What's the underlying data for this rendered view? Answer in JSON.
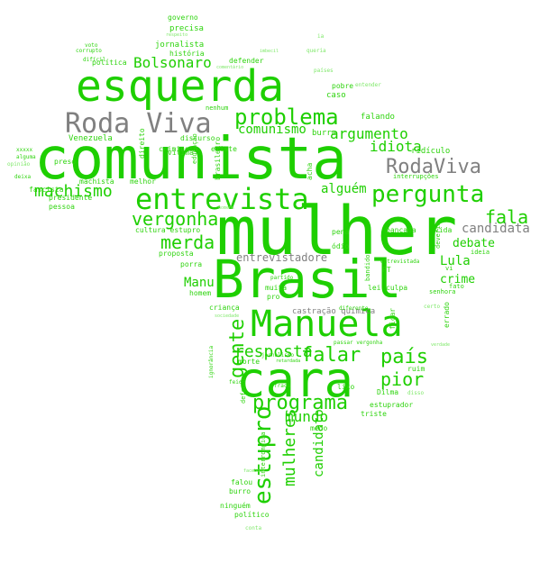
{
  "colors": {
    "primary": "#1ecf00",
    "secondary": "#2fd40f",
    "light": "#7fe86a",
    "gray": "#808080",
    "background": "#ffffff"
  },
  "words": [
    {
      "text": "mulher",
      "color": "primary"
    },
    {
      "text": "comunista",
      "color": "primary"
    },
    {
      "text": "Brasil",
      "color": "primary"
    },
    {
      "text": "esquerda",
      "color": "primary"
    },
    {
      "text": "cara",
      "color": "primary"
    },
    {
      "text": "Manuela",
      "color": "primary"
    },
    {
      "text": "Roda Viva",
      "color": "gray"
    },
    {
      "text": "entrevista",
      "color": "primary"
    },
    {
      "text": "pergunta",
      "color": "primary"
    },
    {
      "text": "problema",
      "color": "primary"
    },
    {
      "text": "programa",
      "color": "primary"
    },
    {
      "text": "estupro",
      "color": "primary"
    },
    {
      "text": "RodaViva",
      "color": "gray"
    },
    {
      "text": "vergonha",
      "color": "primary"
    },
    {
      "text": "falar",
      "color": "primary"
    },
    {
      "text": "país",
      "color": "primary"
    },
    {
      "text": "gente",
      "color": "primary"
    },
    {
      "text": "merda",
      "color": "primary"
    },
    {
      "text": "machismo",
      "color": "primary"
    },
    {
      "text": "mulheres",
      "color": "primary"
    },
    {
      "text": "fala",
      "color": "primary"
    },
    {
      "text": "pior",
      "color": "primary"
    },
    {
      "text": "resposta",
      "color": "primary"
    },
    {
      "text": "argumento",
      "color": "primary"
    },
    {
      "text": "Bolsonaro",
      "color": "primary"
    },
    {
      "text": "comunismo",
      "color": "primary"
    },
    {
      "text": "idiota",
      "color": "primary"
    },
    {
      "text": "mundo",
      "color": "primary"
    },
    {
      "text": "candidata",
      "color": "gray"
    },
    {
      "text": "candidato",
      "color": "primary"
    },
    {
      "text": "debate",
      "color": "primary"
    },
    {
      "text": "Lula",
      "color": "primary"
    },
    {
      "text": "crime",
      "color": "primary"
    },
    {
      "text": "alguém",
      "color": "primary"
    },
    {
      "text": "entrevistadore",
      "color": "gray"
    },
    {
      "text": "Manu",
      "color": "primary"
    },
    {
      "text": "jornalista",
      "color": "secondary"
    },
    {
      "text": "precisa",
      "color": "secondary"
    },
    {
      "text": "governo",
      "color": "secondary"
    },
    {
      "text": "história",
      "color": "secondary"
    },
    {
      "text": "política",
      "color": "secondary"
    },
    {
      "text": "Venezuela",
      "color": "secondary"
    },
    {
      "text": "fascista",
      "color": "secondary"
    },
    {
      "text": "presidente",
      "color": "secondary"
    },
    {
      "text": "pessoa",
      "color": "secondary"
    },
    {
      "text": "machista",
      "color": "secondary"
    },
    {
      "text": "caso",
      "color": "secondary"
    },
    {
      "text": "falando",
      "color": "secondary"
    },
    {
      "text": "burra",
      "color": "secondary"
    },
    {
      "text": "ridículo",
      "color": "secondary"
    },
    {
      "text": "entender",
      "color": "light"
    },
    {
      "text": "pobre",
      "color": "secondary"
    },
    {
      "text": "países",
      "color": "light"
    },
    {
      "text": "defender",
      "color": "secondary"
    },
    {
      "text": "discurso",
      "color": "secondary"
    },
    {
      "text": "vítima",
      "color": "secondary"
    },
    {
      "text": "melhor",
      "color": "secondary"
    },
    {
      "text": "brasileiro",
      "color": "secondary"
    },
    {
      "text": "existe",
      "color": "secondary"
    },
    {
      "text": "criminoso",
      "color": "secondary"
    },
    {
      "text": "preso",
      "color": "secondary"
    },
    {
      "text": "bancada",
      "color": "secondary"
    },
    {
      "text": "vida",
      "color": "secondary"
    },
    {
      "text": "cultura estupro",
      "color": "secondary"
    },
    {
      "text": "proposta",
      "color": "secondary"
    },
    {
      "text": "porra",
      "color": "secondary"
    },
    {
      "text": "homem",
      "color": "secondary"
    },
    {
      "text": "pena",
      "color": "secondary"
    },
    {
      "text": "ódio",
      "color": "secondary"
    },
    {
      "text": "ideia",
      "color": "secondary"
    },
    {
      "text": "lei",
      "color": "secondary"
    },
    {
      "text": "culpa",
      "color": "secondary"
    },
    {
      "text": "senhora",
      "color": "secondary"
    },
    {
      "text": "PT",
      "color": "secondary"
    },
    {
      "text": "fato",
      "color": "secondary"
    },
    {
      "text": "errado",
      "color": "secondary"
    },
    {
      "text": "ficar",
      "color": "secondary"
    },
    {
      "text": "muita",
      "color": "secondary"
    },
    {
      "text": "pro",
      "color": "secondary"
    },
    {
      "text": "criança",
      "color": "secondary"
    },
    {
      "text": "castração química",
      "color": "gray"
    },
    {
      "text": "morte",
      "color": "secondary"
    },
    {
      "text": "ruim",
      "color": "secondary"
    },
    {
      "text": "Dilma",
      "color": "secondary"
    },
    {
      "text": "estuprador",
      "color": "secondary"
    },
    {
      "text": "triste",
      "color": "secondary"
    },
    {
      "text": "medo",
      "color": "secondary"
    },
    {
      "text": "lixo",
      "color": "secondary"
    },
    {
      "text": "falou",
      "color": "secondary"
    },
    {
      "text": "burro",
      "color": "secondary"
    },
    {
      "text": "ninguém",
      "color": "secondary"
    },
    {
      "text": "político",
      "color": "secondary"
    },
    {
      "text": "conta",
      "color": "light"
    },
    {
      "text": "interrupções",
      "color": "secondary"
    },
    {
      "text": "entrevistada",
      "color": "secondary"
    },
    {
      "text": "passar vergonha",
      "color": "secondary"
    },
    {
      "text": "defende",
      "color": "secondary"
    },
    {
      "text": "interrompida",
      "color": "secondary"
    },
    {
      "text": "educação",
      "color": "secondary"
    },
    {
      "text": "direito",
      "color": "secondary"
    },
    {
      "text": "feio",
      "color": "secondary"
    },
    {
      "text": "fraca",
      "color": "secondary"
    },
    {
      "text": "jornalismo",
      "color": "secondary"
    },
    {
      "text": "bandido",
      "color": "secondary"
    },
    {
      "text": "deveria",
      "color": "secondary"
    },
    {
      "text": "partido",
      "color": "secondary"
    },
    {
      "text": "diferente",
      "color": "secondary"
    },
    {
      "text": "ignorância",
      "color": "secondary"
    },
    {
      "text": "retardada",
      "color": "secondary"
    },
    {
      "text": "voto",
      "color": "secondary"
    },
    {
      "text": "corrupto",
      "color": "secondary"
    },
    {
      "text": "difícil",
      "color": "secondary"
    },
    {
      "text": "imbecil",
      "color": "light"
    },
    {
      "text": "ia",
      "color": "light"
    },
    {
      "text": "respeito",
      "color": "light"
    },
    {
      "text": "queria",
      "color": "light"
    },
    {
      "text": "comentário",
      "color": "light"
    },
    {
      "text": "nenhum",
      "color": "secondary"
    },
    {
      "text": "xxxxx",
      "color": "secondary"
    },
    {
      "text": "alguma",
      "color": "secondary"
    },
    {
      "text": "opinião",
      "color": "light"
    },
    {
      "text": "deixa",
      "color": "secondary"
    },
    {
      "text": "acha",
      "color": "secondary"
    },
    {
      "text": "certo",
      "color": "light"
    },
    {
      "text": "disso",
      "color": "light"
    },
    {
      "text": "vi",
      "color": "secondary"
    },
    {
      "text": "sociedade",
      "color": "light"
    },
    {
      "text": "homens",
      "color": "light"
    },
    {
      "text": "verdade",
      "color": "light"
    },
    {
      "text": "facebook",
      "color": "light"
    }
  ]
}
